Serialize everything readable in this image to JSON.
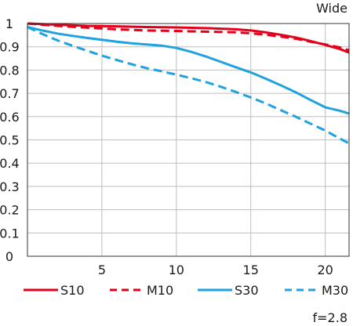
{
  "chart_data": {
    "type": "line",
    "title": "",
    "xlabel": "",
    "ylabel": "",
    "xlim": [
      0,
      21.6
    ],
    "ylim": [
      0,
      1
    ],
    "x_ticks": [
      5,
      10,
      15,
      20
    ],
    "x_tick_labels": [
      "5",
      "10",
      "15",
      "20"
    ],
    "y_ticks": [
      0,
      0.1,
      0.2,
      0.3,
      0.4,
      0.5,
      0.6,
      0.7,
      0.8,
      0.9,
      1
    ],
    "y_tick_labels": [
      "0",
      "0.1",
      "0.2",
      "0.3",
      "0.4",
      "0.5",
      "0.6",
      "0.7",
      "0.8",
      "0.9",
      "1"
    ],
    "grid": true,
    "legend_position": "bottom",
    "annotations": {
      "top_right": "Wide",
      "bottom_right": "f=2.8"
    },
    "series": [
      {
        "name": "S10",
        "color": "#e3001b",
        "dash": "solid",
        "x": [
          0,
          2,
          4,
          6,
          8,
          10,
          12,
          14,
          15,
          16,
          17,
          18,
          19,
          20,
          21,
          21.6
        ],
        "y": [
          1.0,
          0.995,
          0.99,
          0.988,
          0.985,
          0.983,
          0.98,
          0.975,
          0.97,
          0.962,
          0.952,
          0.94,
          0.925,
          0.908,
          0.89,
          0.875
        ]
      },
      {
        "name": "M10",
        "color": "#e3001b",
        "dash": "dashed",
        "x": [
          0,
          2,
          4,
          6,
          8,
          10,
          12,
          14,
          15,
          16,
          17,
          18,
          19,
          20,
          21,
          21.6
        ],
        "y": [
          1.0,
          0.99,
          0.982,
          0.975,
          0.97,
          0.968,
          0.965,
          0.962,
          0.958,
          0.952,
          0.944,
          0.935,
          0.922,
          0.91,
          0.897,
          0.885
        ]
      },
      {
        "name": "S30",
        "color": "#1fa2e0",
        "dash": "solid",
        "x": [
          0,
          1,
          2,
          3,
          4,
          5,
          6,
          7,
          8,
          9,
          10,
          11,
          12,
          13,
          14,
          15,
          16,
          17,
          18,
          19,
          20,
          21,
          21.6
        ],
        "y": [
          0.985,
          0.97,
          0.957,
          0.947,
          0.938,
          0.93,
          0.922,
          0.915,
          0.91,
          0.905,
          0.895,
          0.878,
          0.858,
          0.835,
          0.812,
          0.79,
          0.763,
          0.735,
          0.705,
          0.672,
          0.64,
          0.625,
          0.613
        ]
      },
      {
        "name": "M30",
        "color": "#1fa2e0",
        "dash": "dashed",
        "x": [
          0,
          1,
          2,
          3,
          4,
          5,
          6,
          7,
          8,
          9,
          10,
          11,
          12,
          13,
          14,
          15,
          16,
          17,
          18,
          19,
          20,
          21,
          21.6
        ],
        "y": [
          0.985,
          0.955,
          0.928,
          0.905,
          0.883,
          0.862,
          0.843,
          0.825,
          0.808,
          0.795,
          0.78,
          0.765,
          0.748,
          0.728,
          0.706,
          0.682,
          0.657,
          0.628,
          0.6,
          0.57,
          0.54,
          0.505,
          0.485
        ]
      }
    ]
  }
}
